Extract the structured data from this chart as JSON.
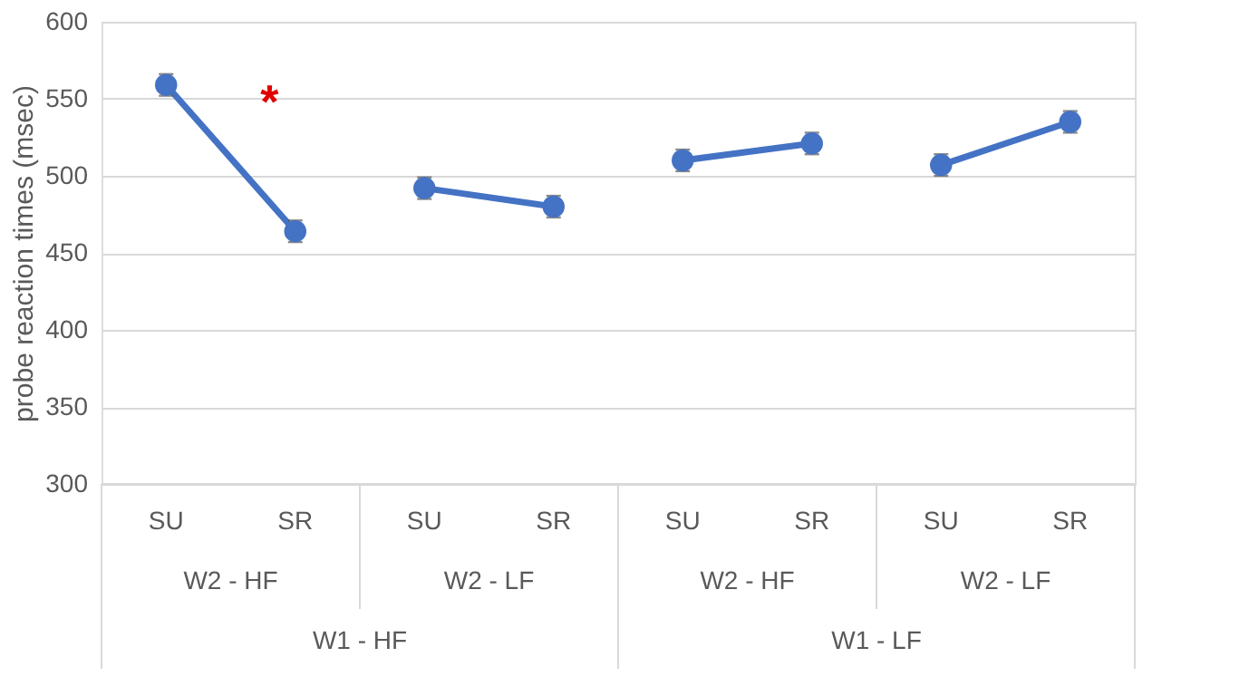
{
  "chart_data": {
    "type": "line",
    "ylabel": "probe reaction times (msec)",
    "categories": [
      "SU",
      "SR",
      "SU",
      "SR",
      "SU",
      "SR",
      "SU",
      "SR"
    ],
    "series": [
      {
        "color": "#4472c4",
        "values": [
          559,
          464,
          null,
          null,
          null,
          null,
          null,
          null
        ],
        "errors": [
          7,
          7,
          null,
          null,
          null,
          null,
          null,
          null
        ]
      },
      {
        "color": "#4472c4",
        "values": [
          null,
          null,
          492,
          480,
          null,
          null,
          null,
          null
        ],
        "errors": [
          null,
          null,
          7,
          7,
          null,
          null,
          null,
          null
        ]
      },
      {
        "color": "#4472c4",
        "values": [
          null,
          null,
          null,
          null,
          510,
          521,
          null,
          null
        ],
        "errors": [
          null,
          null,
          null,
          null,
          7,
          7,
          null,
          null
        ]
      },
      {
        "color": "#4472c4",
        "values": [
          null,
          null,
          null,
          null,
          null,
          null,
          507,
          535
        ],
        "errors": [
          null,
          null,
          null,
          null,
          null,
          null,
          7,
          7
        ]
      }
    ],
    "ylim": [
      300,
      600
    ],
    "yticks": [
      300,
      350,
      400,
      450,
      500,
      550,
      600
    ],
    "grid": "y",
    "marker": "circle",
    "line_style": "solid",
    "annotations": [
      "*",
      "W2 - HF",
      "W2 - LF",
      "W2 - HF",
      "W2 - LF",
      "W1 - HF",
      "W1 - LF"
    ]
  }
}
